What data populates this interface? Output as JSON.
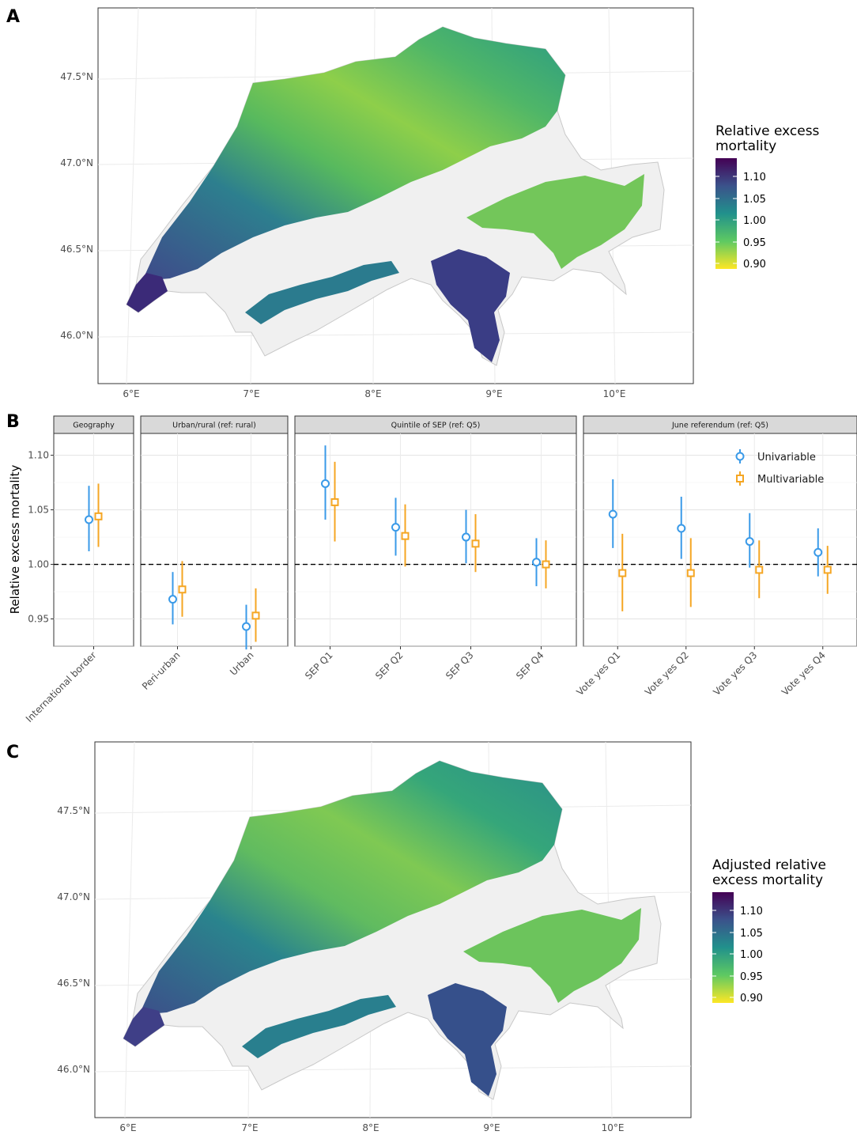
{
  "panels": {
    "a": {
      "letter": "A"
    },
    "b": {
      "letter": "B"
    },
    "c": {
      "letter": "C"
    }
  },
  "colors": {
    "univariable": "#3a9ae8",
    "multivariable": "#f5a623",
    "viridis": [
      "#440154",
      "#3b528b",
      "#21918c",
      "#5ec962",
      "#fde725"
    ]
  },
  "maps": [
    {
      "panel": "A",
      "legend_title": [
        "Relative excess",
        "mortality"
      ],
      "colorbar_ticks": [
        "1.10",
        "1.05",
        "1.00",
        "0.95",
        "0.90"
      ],
      "lat_labels": [
        "47.5°N",
        "47.0°N",
        "46.5°N",
        "46.0°N"
      ],
      "lon_labels": [
        "6°E",
        "7°E",
        "8°E",
        "9°E",
        "10°E"
      ]
    },
    {
      "panel": "C",
      "legend_title": [
        "Adjusted relative",
        "excess mortality"
      ],
      "colorbar_ticks": [
        "1.10",
        "1.05",
        "1.00",
        "0.95",
        "0.90"
      ],
      "lat_labels": [
        "47.5°N",
        "47.0°N",
        "46.5°N",
        "46.0°N"
      ],
      "lon_labels": [
        "6°E",
        "7°E",
        "8°E",
        "9°E",
        "10°E"
      ]
    }
  ],
  "chart_data": {
    "type": "scatter",
    "ylabel": "Relative excess mortality",
    "ylim": [
      0.925,
      1.12
    ],
    "yticks": [
      "1.10",
      "1.05",
      "1.00",
      "0.95"
    ],
    "reference_line": 1.0,
    "legend": {
      "placement": "top-right",
      "entries": [
        "Univariable",
        "Multivariable"
      ]
    },
    "facets": [
      {
        "label": "Geography",
        "categories": [
          "International border"
        ]
      },
      {
        "label": "Urban/rural (ref: rural)",
        "categories": [
          "Peri-urban",
          "Urban"
        ]
      },
      {
        "label": "Quintile of SEP (ref: Q5)",
        "categories": [
          "SEP Q1",
          "SEP Q2",
          "SEP Q3",
          "SEP Q4"
        ]
      },
      {
        "label": "June referendum (ref: Q5)",
        "categories": [
          "Vote yes Q1",
          "Vote yes Q2",
          "Vote yes Q3",
          "Vote yes Q4"
        ]
      }
    ],
    "series": [
      {
        "name": "Univariable",
        "points": [
          {
            "category": "International border",
            "est": 1.041,
            "lo": 1.012,
            "hi": 1.072
          },
          {
            "category": "Peri-urban",
            "est": 0.968,
            "lo": 0.945,
            "hi": 0.993
          },
          {
            "category": "Urban",
            "est": 0.943,
            "lo": 0.922,
            "hi": 0.963
          },
          {
            "category": "SEP Q1",
            "est": 1.074,
            "lo": 1.041,
            "hi": 1.109
          },
          {
            "category": "SEP Q2",
            "est": 1.034,
            "lo": 1.008,
            "hi": 1.061
          },
          {
            "category": "SEP Q3",
            "est": 1.025,
            "lo": 1.001,
            "hi": 1.05
          },
          {
            "category": "SEP Q4",
            "est": 1.002,
            "lo": 0.98,
            "hi": 1.024
          },
          {
            "category": "Vote yes Q1",
            "est": 1.046,
            "lo": 1.015,
            "hi": 1.078
          },
          {
            "category": "Vote yes Q2",
            "est": 1.033,
            "lo": 1.005,
            "hi": 1.062
          },
          {
            "category": "Vote yes Q3",
            "est": 1.021,
            "lo": 0.997,
            "hi": 1.047
          },
          {
            "category": "Vote yes Q4",
            "est": 1.011,
            "lo": 0.989,
            "hi": 1.033
          }
        ]
      },
      {
        "name": "Multivariable",
        "points": [
          {
            "category": "International border",
            "est": 1.044,
            "lo": 1.016,
            "hi": 1.074
          },
          {
            "category": "Peri-urban",
            "est": 0.977,
            "lo": 0.952,
            "hi": 1.003
          },
          {
            "category": "Urban",
            "est": 0.953,
            "lo": 0.929,
            "hi": 0.978
          },
          {
            "category": "SEP Q1",
            "est": 1.057,
            "lo": 1.021,
            "hi": 1.094
          },
          {
            "category": "SEP Q2",
            "est": 1.026,
            "lo": 0.998,
            "hi": 1.055
          },
          {
            "category": "SEP Q3",
            "est": 1.019,
            "lo": 0.993,
            "hi": 1.046
          },
          {
            "category": "SEP Q4",
            "est": 1.0,
            "lo": 0.978,
            "hi": 1.022
          },
          {
            "category": "Vote yes Q1",
            "est": 0.992,
            "lo": 0.957,
            "hi": 1.028
          },
          {
            "category": "Vote yes Q2",
            "est": 0.992,
            "lo": 0.961,
            "hi": 1.024
          },
          {
            "category": "Vote yes Q3",
            "est": 0.995,
            "lo": 0.969,
            "hi": 1.022
          },
          {
            "category": "Vote yes Q4",
            "est": 0.995,
            "lo": 0.973,
            "hi": 1.017
          }
        ]
      }
    ]
  }
}
